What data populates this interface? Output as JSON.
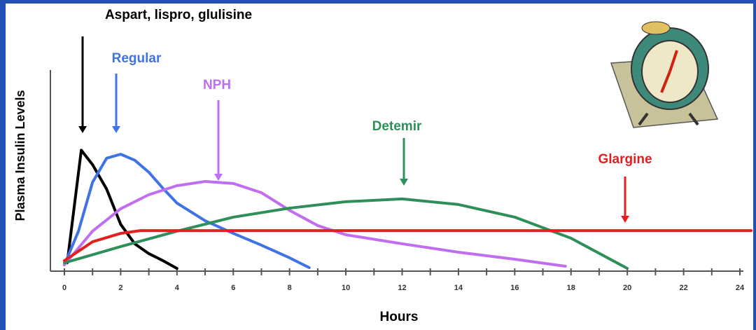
{
  "chart_data": {
    "type": "line",
    "x_label": "Hours",
    "y_label": "Plasma Insulin Levels",
    "xlim": [
      0,
      24
    ],
    "ylim": [
      0,
      100
    ],
    "xticks": [
      0,
      2,
      4,
      6,
      8,
      10,
      12,
      14,
      16,
      18,
      20,
      22,
      24
    ],
    "series": [
      {
        "name": "Aspart, lispro, glulisine",
        "color": "#000000",
        "x": [
          0.1,
          0.6,
          1,
          1.5,
          2,
          2.5,
          3,
          3.5,
          4
        ],
        "values": [
          3.8,
          60,
          52.8,
          40.6,
          23,
          13.3,
          8.4,
          4.9,
          1
        ]
      },
      {
        "name": "Regular",
        "color": "#3f72e4",
        "x": [
          0,
          0.5,
          1,
          1.5,
          2,
          2.5,
          3,
          3.5,
          4,
          5,
          6,
          7,
          8,
          8.7
        ],
        "values": [
          2.8,
          19.6,
          44,
          56,
          58,
          55,
          49,
          41,
          33.6,
          24.8,
          18.5,
          12.6,
          6.3,
          1.4
        ]
      },
      {
        "name": "NPH",
        "color": "#c06ef0",
        "x": [
          0,
          1,
          2,
          3,
          4,
          5,
          6,
          7,
          8,
          9,
          10,
          12,
          14,
          16,
          17.8
        ],
        "values": [
          2.8,
          19.6,
          30.8,
          37.8,
          42.3,
          44.4,
          43.4,
          38.8,
          30,
          22.4,
          17.8,
          13.3,
          9.1,
          5.6,
          2.1
        ]
      },
      {
        "name": "Detemir",
        "color": "#2f8f5a",
        "x": [
          0,
          2,
          4,
          6,
          8,
          10,
          12,
          14,
          16,
          18,
          20
        ],
        "values": [
          3.8,
          11.9,
          19.6,
          26.6,
          31.1,
          34.3,
          35.7,
          32.9,
          26.6,
          16.1,
          1
        ]
      },
      {
        "name": "Glargine",
        "color": "#e3201f",
        "x": [
          0,
          1,
          2,
          2.7,
          4,
          8,
          12,
          16,
          20,
          24.4
        ],
        "values": [
          4.9,
          14.3,
          18.5,
          19.9,
          19.9,
          19.9,
          19.9,
          19.9,
          19.9,
          19.9
        ]
      }
    ]
  }
}
